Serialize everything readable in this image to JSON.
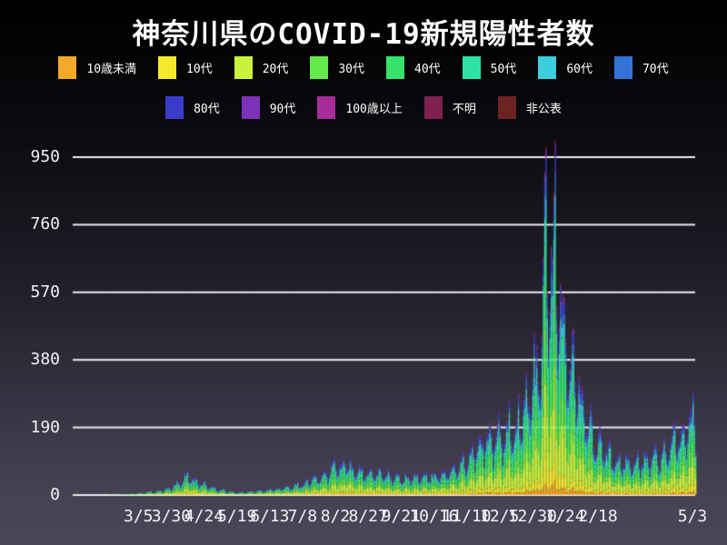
{
  "chart_data": {
    "type": "bar",
    "stacked": true,
    "title": "神奈川県のCOVID-19新規陽性者数",
    "x_start_date": "2020-01-15",
    "x_end_date": "2021-05-03",
    "ylim": [
      0,
      1000
    ],
    "y_ticks": [
      0,
      190,
      380,
      570,
      760,
      950
    ],
    "grid": true,
    "gridline_color": "#eceaf2",
    "background_top": "#000000",
    "background_bottom": "#4a4656",
    "legend_position": "top",
    "x_tick_labels": [
      {
        "label": "3/5",
        "date": "2020-03-05"
      },
      {
        "label": "3/30",
        "date": "2020-03-30"
      },
      {
        "label": "4/24",
        "date": "2020-04-24"
      },
      {
        "label": "5/19",
        "date": "2020-05-19"
      },
      {
        "label": "6/13",
        "date": "2020-06-13"
      },
      {
        "label": "7/8",
        "date": "2020-07-08"
      },
      {
        "label": "8/2",
        "date": "2020-08-02"
      },
      {
        "label": "8/27",
        "date": "2020-08-27"
      },
      {
        "label": "9/21",
        "date": "2020-09-21"
      },
      {
        "label": "10/16",
        "date": "2020-10-16"
      },
      {
        "label": "11/10",
        "date": "2020-11-10"
      },
      {
        "label": "12/5",
        "date": "2020-12-05"
      },
      {
        "label": "12/30",
        "date": "2020-12-30"
      },
      {
        "label": "1/24",
        "date": "2021-01-24"
      },
      {
        "label": "2/18",
        "date": "2021-02-18"
      },
      {
        "label": "5/3",
        "date": "2021-05-03"
      }
    ],
    "series": [
      {
        "label": "10歳未満",
        "color": "#F5A928",
        "share": 0.035
      },
      {
        "label": "10代",
        "color": "#F5E92C",
        "share": 0.075
      },
      {
        "label": "20代",
        "color": "#C8F23C",
        "share": 0.22
      },
      {
        "label": "30代",
        "color": "#63E94A",
        "share": 0.16
      },
      {
        "label": "40代",
        "color": "#35E36A",
        "share": 0.15
      },
      {
        "label": "50代",
        "color": "#2FE3A5",
        "share": 0.13
      },
      {
        "label": "60代",
        "color": "#3BCEDC",
        "share": 0.075
      },
      {
        "label": "70代",
        "color": "#3372D6",
        "share": 0.065
      },
      {
        "label": "80代",
        "color": "#3A3BCB",
        "share": 0.05
      },
      {
        "label": "90代",
        "color": "#7B31B8",
        "share": 0.025
      },
      {
        "label": "100歳以上",
        "color": "#A62D97",
        "share": 0.003
      },
      {
        "label": "不明",
        "color": "#7E2150",
        "share": 0.002
      },
      {
        "label": "非公表",
        "color": "#6E2323",
        "share": 0.01
      }
    ],
    "legend_rows": [
      8,
      5
    ],
    "weekly_factors": [
      0.8,
      0.6,
      0.74,
      0.92,
      1.05,
      1.12,
      1.15
    ],
    "daily_totals_envelope": [
      {
        "date": "2020-01-15",
        "total": 1
      },
      {
        "date": "2020-01-18",
        "total": 0
      },
      {
        "date": "2020-02-05",
        "total": 0
      },
      {
        "date": "2020-02-14",
        "total": 1
      },
      {
        "date": "2020-02-22",
        "total": 2
      },
      {
        "date": "2020-03-01",
        "total": 4
      },
      {
        "date": "2020-03-10",
        "total": 8
      },
      {
        "date": "2020-03-20",
        "total": 12
      },
      {
        "date": "2020-03-28",
        "total": 20
      },
      {
        "date": "2020-04-05",
        "total": 40
      },
      {
        "date": "2020-04-09",
        "total": 55
      },
      {
        "date": "2020-04-15",
        "total": 48
      },
      {
        "date": "2020-04-22",
        "total": 36
      },
      {
        "date": "2020-05-01",
        "total": 22
      },
      {
        "date": "2020-05-10",
        "total": 12
      },
      {
        "date": "2020-05-20",
        "total": 7
      },
      {
        "date": "2020-06-01",
        "total": 10
      },
      {
        "date": "2020-06-15",
        "total": 18
      },
      {
        "date": "2020-07-01",
        "total": 28
      },
      {
        "date": "2020-07-10",
        "total": 38
      },
      {
        "date": "2020-07-20",
        "total": 55
      },
      {
        "date": "2020-08-01",
        "total": 85
      },
      {
        "date": "2020-08-08",
        "total": 100
      },
      {
        "date": "2020-08-15",
        "total": 85
      },
      {
        "date": "2020-08-25",
        "total": 70
      },
      {
        "date": "2020-09-05",
        "total": 65
      },
      {
        "date": "2020-09-20",
        "total": 55
      },
      {
        "date": "2020-10-05",
        "total": 55
      },
      {
        "date": "2020-10-20",
        "total": 65
      },
      {
        "date": "2020-11-01",
        "total": 80
      },
      {
        "date": "2020-11-10",
        "total": 110
      },
      {
        "date": "2020-11-20",
        "total": 160
      },
      {
        "date": "2020-12-01",
        "total": 175
      },
      {
        "date": "2020-12-10",
        "total": 190
      },
      {
        "date": "2020-12-20",
        "total": 240
      },
      {
        "date": "2020-12-28",
        "total": 290
      },
      {
        "date": "2020-12-31",
        "total": 430
      },
      {
        "date": "2021-01-02",
        "total": 330
      },
      {
        "date": "2021-01-05",
        "total": 480
      },
      {
        "date": "2021-01-07",
        "total": 650
      },
      {
        "date": "2021-01-09",
        "total": 830
      },
      {
        "date": "2021-01-12",
        "total": 700
      },
      {
        "date": "2021-01-16",
        "total": 760
      },
      {
        "date": "2021-01-20",
        "total": 600
      },
      {
        "date": "2021-01-24",
        "total": 480
      },
      {
        "date": "2021-01-28",
        "total": 400
      },
      {
        "date": "2021-02-03",
        "total": 320
      },
      {
        "date": "2021-02-10",
        "total": 230
      },
      {
        "date": "2021-02-17",
        "total": 160
      },
      {
        "date": "2021-02-24",
        "total": 130
      },
      {
        "date": "2021-03-05",
        "total": 105
      },
      {
        "date": "2021-03-15",
        "total": 95
      },
      {
        "date": "2021-03-25",
        "total": 105
      },
      {
        "date": "2021-04-05",
        "total": 120
      },
      {
        "date": "2021-04-12",
        "total": 140
      },
      {
        "date": "2021-04-19",
        "total": 165
      },
      {
        "date": "2021-04-26",
        "total": 210
      },
      {
        "date": "2021-04-29",
        "total": 245
      },
      {
        "date": "2021-05-01",
        "total": 250
      },
      {
        "date": "2021-05-03",
        "total": 235
      }
    ],
    "peak_value": 995
  }
}
